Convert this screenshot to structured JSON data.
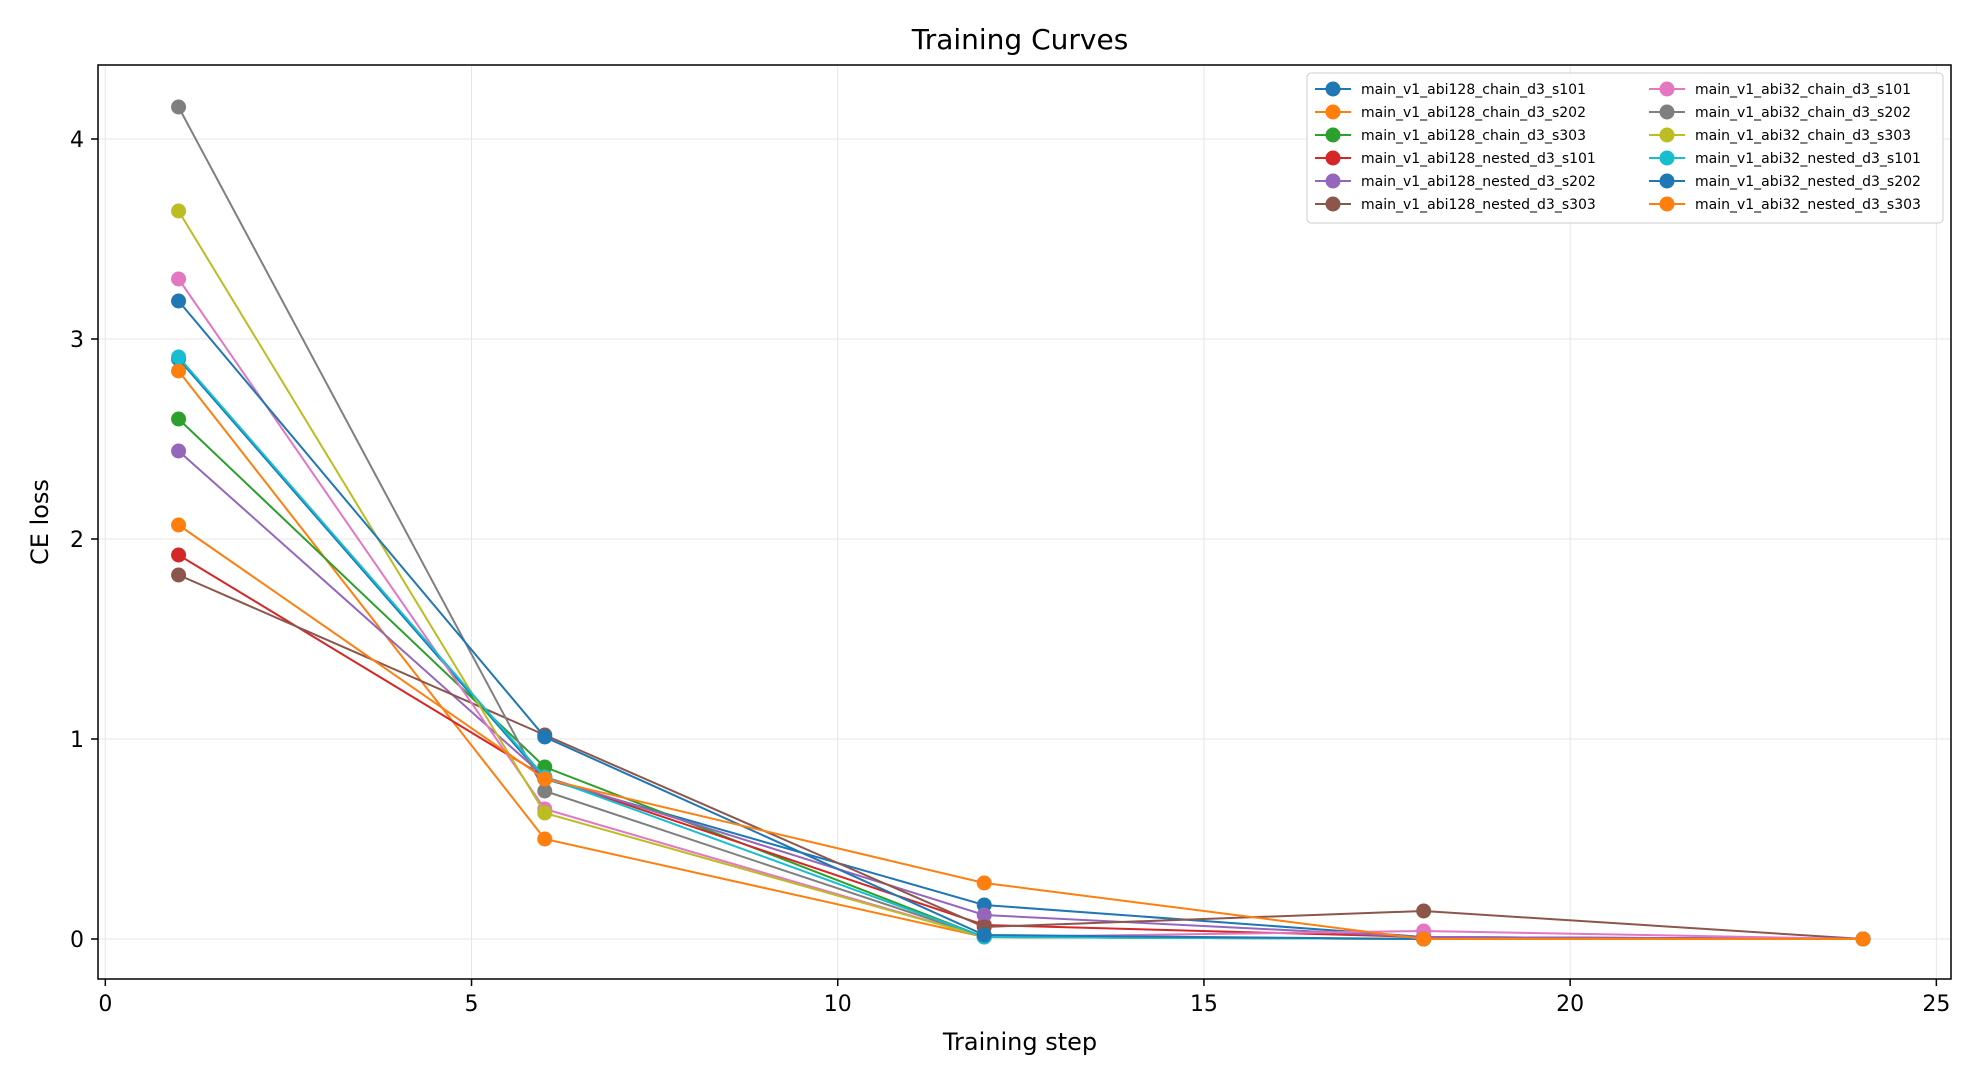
{
  "chart_data": {
    "type": "line",
    "title": "Training Curves",
    "xlabel": "Training step",
    "ylabel": "CE loss",
    "xlim": [
      -0.1,
      25.2
    ],
    "ylim": [
      -0.2,
      4.37
    ],
    "xticks": [
      0,
      5,
      10,
      15,
      20,
      25
    ],
    "yticks": [
      0,
      1,
      2,
      3,
      4
    ],
    "grid": true,
    "legend_position": "top-right",
    "x": [
      1,
      6,
      12,
      18,
      24
    ],
    "series": [
      {
        "name": "main_v1_abi128_chain_d3_s101",
        "color": "#1f77b4",
        "values": [
          2.9,
          0.8,
          0.17,
          0.01,
          0.0
        ]
      },
      {
        "name": "main_v1_abi128_chain_d3_s202",
        "color": "#ff7f0e",
        "values": [
          2.84,
          0.5,
          0.01,
          0.0,
          0.0
        ]
      },
      {
        "name": "main_v1_abi128_chain_d3_s303",
        "color": "#2ca02c",
        "values": [
          2.6,
          0.86,
          0.01,
          0.0,
          0.0
        ]
      },
      {
        "name": "main_v1_abi128_nested_d3_s101",
        "color": "#d62728",
        "values": [
          1.92,
          0.81,
          0.07,
          0.01,
          0.0
        ]
      },
      {
        "name": "main_v1_abi128_nested_d3_s202",
        "color": "#9467bd",
        "values": [
          2.44,
          0.81,
          0.12,
          0.01,
          0.0
        ]
      },
      {
        "name": "main_v1_abi128_nested_d3_s303",
        "color": "#8c564b",
        "values": [
          1.82,
          1.02,
          0.06,
          0.14,
          0.0
        ]
      },
      {
        "name": "main_v1_abi32_chain_d3_s101",
        "color": "#e377c2",
        "values": [
          3.3,
          0.65,
          0.01,
          0.04,
          0.0
        ]
      },
      {
        "name": "main_v1_abi32_chain_d3_s202",
        "color": "#7f7f7f",
        "values": [
          4.16,
          0.74,
          0.01,
          0.0,
          0.0
        ]
      },
      {
        "name": "main_v1_abi32_chain_d3_s303",
        "color": "#bcbd22",
        "values": [
          3.64,
          0.63,
          0.01,
          0.0,
          0.0
        ]
      },
      {
        "name": "main_v1_abi32_nested_d3_s101",
        "color": "#17becf",
        "values": [
          2.91,
          0.81,
          0.01,
          0.0,
          0.0
        ]
      },
      {
        "name": "main_v1_abi32_nested_d3_s202",
        "color": "#1f77b4",
        "values": [
          3.19,
          1.01,
          0.02,
          0.0,
          0.0
        ]
      },
      {
        "name": "main_v1_abi32_nested_d3_s303",
        "color": "#ff7f0e",
        "values": [
          2.07,
          0.8,
          0.28,
          0.0,
          0.0
        ]
      }
    ]
  }
}
